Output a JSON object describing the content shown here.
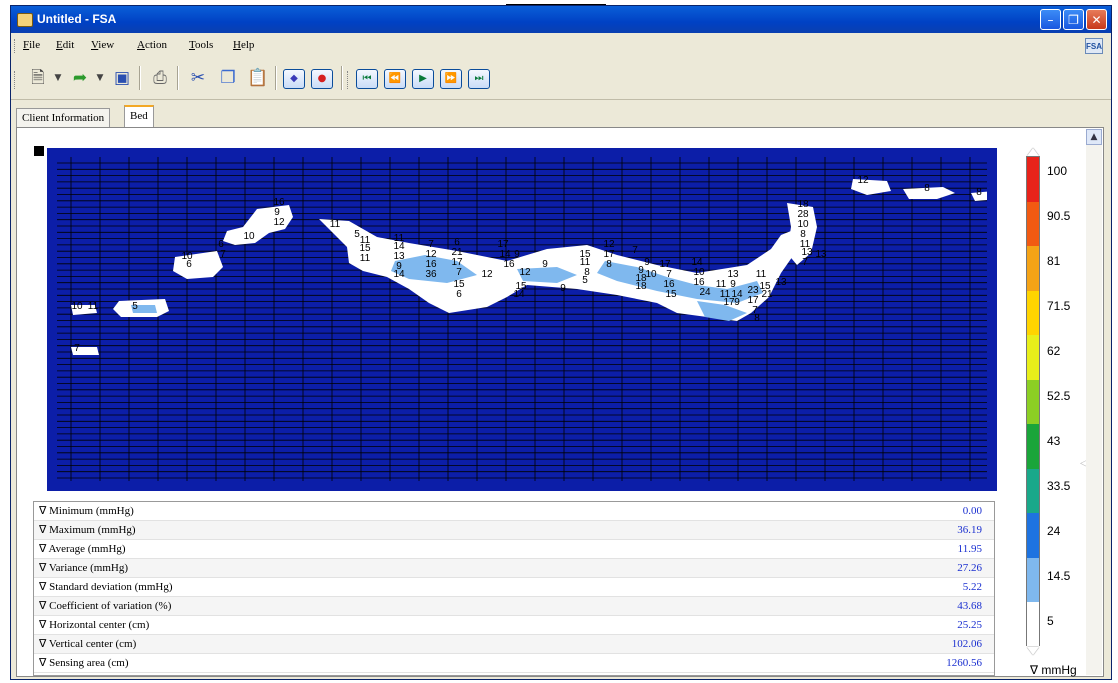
{
  "window": {
    "title": "Untitled - FSA"
  },
  "menu": [
    "File",
    "Edit",
    "View",
    "Action",
    "Tools",
    "Help"
  ],
  "menu_accel": [
    "F",
    "E",
    "V",
    "A",
    "T",
    "H"
  ],
  "menu_rest": [
    "ile",
    "dit",
    "iew",
    "ction",
    "ools",
    "elp"
  ],
  "toolbar": {
    "icons": [
      "new-document-icon",
      "dropdown-arrow-icon",
      "open-folder-icon",
      "dropdown-arrow-icon",
      "save-icon",
      "print-icon",
      "cut-icon",
      "copy-icon",
      "paste-icon",
      "record-diamond-icon",
      "record-stop-icon",
      "skip-first-icon",
      "rewind-icon",
      "play-icon",
      "fast-forward-icon",
      "skip-last-icon"
    ]
  },
  "tabs": [
    {
      "label": "Client Information",
      "active": false
    },
    {
      "label": "Bed",
      "active": true
    }
  ],
  "stats": [
    {
      "label": "Minimum (mmHg)",
      "value": "0.00"
    },
    {
      "label": "Maximum (mmHg)",
      "value": "36.19"
    },
    {
      "label": "Average (mmHg)",
      "value": "11.95"
    },
    {
      "label": "Variance (mmHg)",
      "value": "27.26"
    },
    {
      "label": "Standard deviation (mmHg)",
      "value": "5.22"
    },
    {
      "label": "Coefficient of variation (%)",
      "value": "43.68"
    },
    {
      "label": "Horizontal center (cm)",
      "value": "25.25"
    },
    {
      "label": "Vertical center (cm)",
      "value": "102.06"
    },
    {
      "label": "Sensing area (cm)",
      "value": "1260.56"
    }
  ],
  "stat_marker": "∇",
  "legend": {
    "labels": [
      "100",
      "90.5",
      "81",
      "71.5",
      "62",
      "52.5",
      "43",
      "33.5",
      "24",
      "14.5",
      "5"
    ],
    "unit": "∇ mmHg",
    "colors": [
      "#e8231a",
      "#f25a12",
      "#f5a316",
      "#ffd400",
      "#e8ef1a",
      "#8ccf24",
      "#1aa53a",
      "#19a88a",
      "#1e73e0",
      "#7fb8ee",
      "#ffffff"
    ]
  },
  "map_labels": [
    "16",
    "9",
    "12",
    "11",
    "5",
    "10",
    "6",
    "7",
    "10",
    "6",
    "11",
    "15",
    "11",
    "11",
    "14",
    "7",
    "13",
    "9",
    "14",
    "12",
    "16",
    "36",
    "6",
    "21",
    "17",
    "7",
    "15",
    "6",
    "17",
    "14",
    "16",
    "9",
    "12",
    "12",
    "15",
    "14",
    "9",
    "9",
    "15",
    "11",
    "8",
    "5",
    "12",
    "17",
    "8",
    "7",
    "9",
    "18",
    "18",
    "9",
    "10",
    "17",
    "7",
    "16",
    "15",
    "14",
    "10",
    "16",
    "24",
    "13",
    "9",
    "14",
    "9",
    "11",
    "11",
    "17",
    "23",
    "17",
    "7",
    "8",
    "11",
    "15",
    "21",
    "13",
    "18",
    "28",
    "10",
    "8",
    "11",
    "13",
    "7",
    "13",
    "12",
    "8",
    "8",
    "11",
    "5",
    "10",
    "7",
    "13",
    "11",
    "9",
    "23",
    "10"
  ],
  "colors": {
    "accent": "#0041c4",
    "map_bg": "#0c1ea8",
    "low": "#7fb8ee",
    "none": "#ffffff"
  }
}
